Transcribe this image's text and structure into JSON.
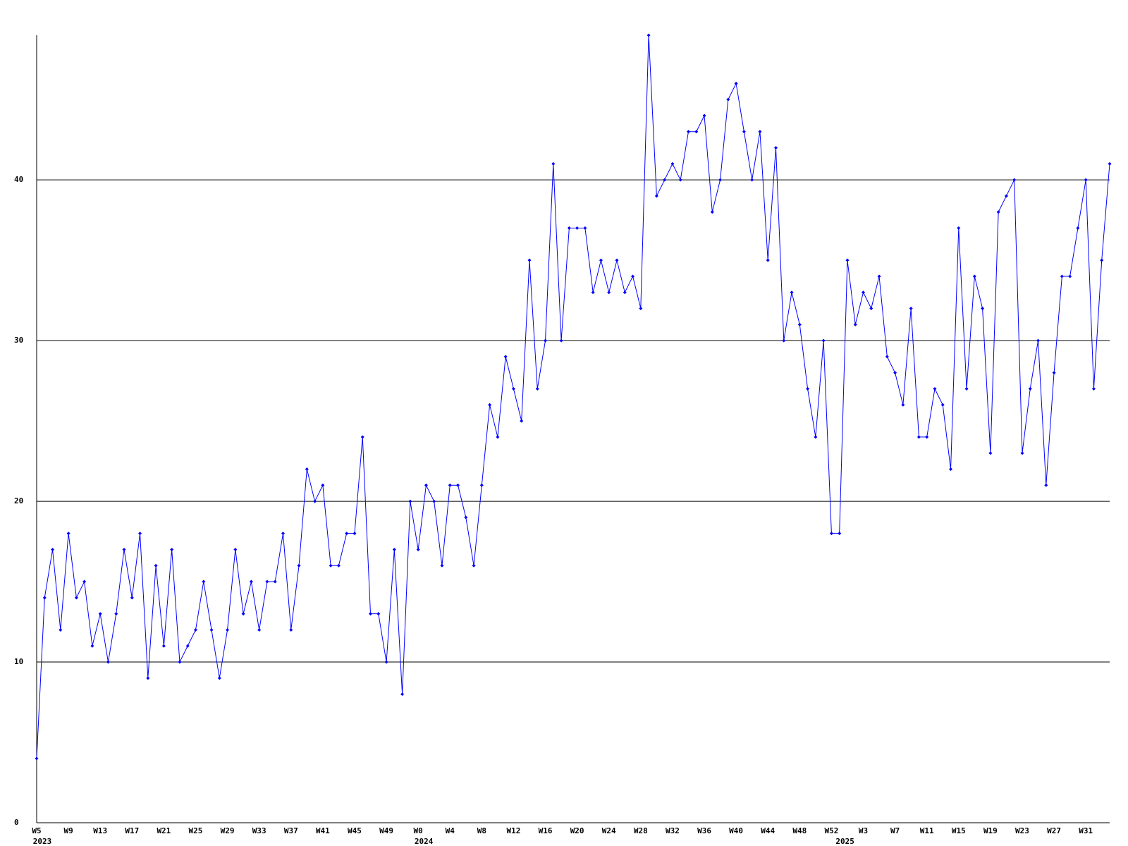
{
  "chart_data": {
    "type": "line",
    "categories": [
      "W5",
      null,
      null,
      null,
      "W9",
      null,
      null,
      null,
      "W13",
      null,
      null,
      null,
      "W17",
      null,
      null,
      null,
      "W21",
      null,
      null,
      null,
      "W25",
      null,
      null,
      null,
      "W29",
      null,
      null,
      null,
      "W33",
      null,
      null,
      null,
      "W37",
      null,
      null,
      null,
      "W41",
      null,
      null,
      null,
      "W45",
      null,
      null,
      null,
      "W49",
      null,
      null,
      null,
      "W0",
      null,
      null,
      null,
      "W4",
      null,
      null,
      null,
      "W8",
      null,
      null,
      null,
      "W12",
      null,
      null,
      null,
      "W16",
      null,
      null,
      null,
      "W20",
      null,
      null,
      null,
      "W24",
      null,
      null,
      null,
      "W28",
      null,
      null,
      null,
      "W32",
      null,
      null,
      null,
      "W36",
      null,
      null,
      null,
      "W40",
      null,
      null,
      null,
      "W44",
      null,
      null,
      null,
      "W48",
      null,
      null,
      null,
      "W52",
      null,
      null,
      null,
      "W3",
      null,
      null,
      null,
      "W7",
      null,
      null,
      null,
      "W11",
      null,
      null,
      null,
      "W15",
      null,
      null,
      null,
      "W19",
      null,
      null,
      null,
      "W23",
      null,
      null,
      null,
      "W27",
      null,
      null,
      null,
      "W31",
      null,
      null,
      null
    ],
    "year_labels": [
      "2023",
      null,
      null,
      null,
      null,
      null,
      null,
      null,
      null,
      null,
      null,
      null,
      null,
      null,
      null,
      null,
      null,
      null,
      null,
      null,
      null,
      null,
      null,
      null,
      null,
      null,
      null,
      null,
      null,
      null,
      null,
      null,
      null,
      null,
      null,
      null,
      null,
      null,
      null,
      null,
      null,
      null,
      null,
      null,
      null,
      null,
      null,
      null,
      "2024",
      null,
      null,
      null,
      null,
      null,
      null,
      null,
      null,
      null,
      null,
      null,
      null,
      null,
      null,
      null,
      null,
      null,
      null,
      null,
      null,
      null,
      null,
      null,
      null,
      null,
      null,
      null,
      null,
      null,
      null,
      null,
      null,
      null,
      null,
      null,
      null,
      null,
      null,
      null,
      null,
      null,
      null,
      null,
      null,
      null,
      null,
      null,
      null,
      null,
      null,
      null,
      null,
      "2025",
      null,
      null,
      null,
      null,
      null,
      null,
      null,
      null,
      null,
      null,
      null,
      null,
      null,
      null,
      null,
      null,
      null,
      null,
      null,
      null,
      null,
      null,
      null,
      null,
      null,
      null,
      null,
      null,
      null,
      null,
      null,
      null,
      null,
      null
    ],
    "series": [
      {
        "color": "#0000ff",
        "values": [
          4,
          14,
          17,
          12,
          18,
          14,
          15,
          11,
          13,
          10,
          13,
          17,
          14,
          18,
          9,
          16,
          11,
          17,
          10,
          11,
          12,
          15,
          12,
          9,
          12,
          17,
          13,
          15,
          12,
          15,
          15,
          18,
          12,
          16,
          22,
          20,
          21,
          16,
          16,
          18,
          18,
          24,
          13,
          13,
          10,
          17,
          8,
          20,
          17,
          21,
          20,
          16,
          21,
          21,
          19,
          16,
          21,
          26,
          24,
          29,
          27,
          25,
          35,
          27,
          30,
          41,
          30,
          37,
          37,
          37,
          33,
          35,
          33,
          35,
          33,
          34,
          32,
          49,
          39,
          40,
          41,
          40,
          43,
          43,
          44,
          38,
          40,
          45,
          46,
          43,
          40,
          43,
          35,
          42,
          30,
          33,
          31,
          27,
          24,
          30,
          18,
          18,
          35,
          31,
          33,
          32,
          34,
          29,
          28,
          26,
          32,
          24,
          24,
          27,
          26,
          22,
          37,
          27,
          34,
          32,
          23,
          38,
          39,
          40,
          23,
          27,
          30,
          21,
          28,
          34,
          34,
          37,
          40,
          27,
          35,
          41
        ]
      }
    ],
    "ylim": [
      0,
      49
    ],
    "yticks": [
      0,
      10,
      20,
      30,
      40
    ],
    "grid": true
  }
}
